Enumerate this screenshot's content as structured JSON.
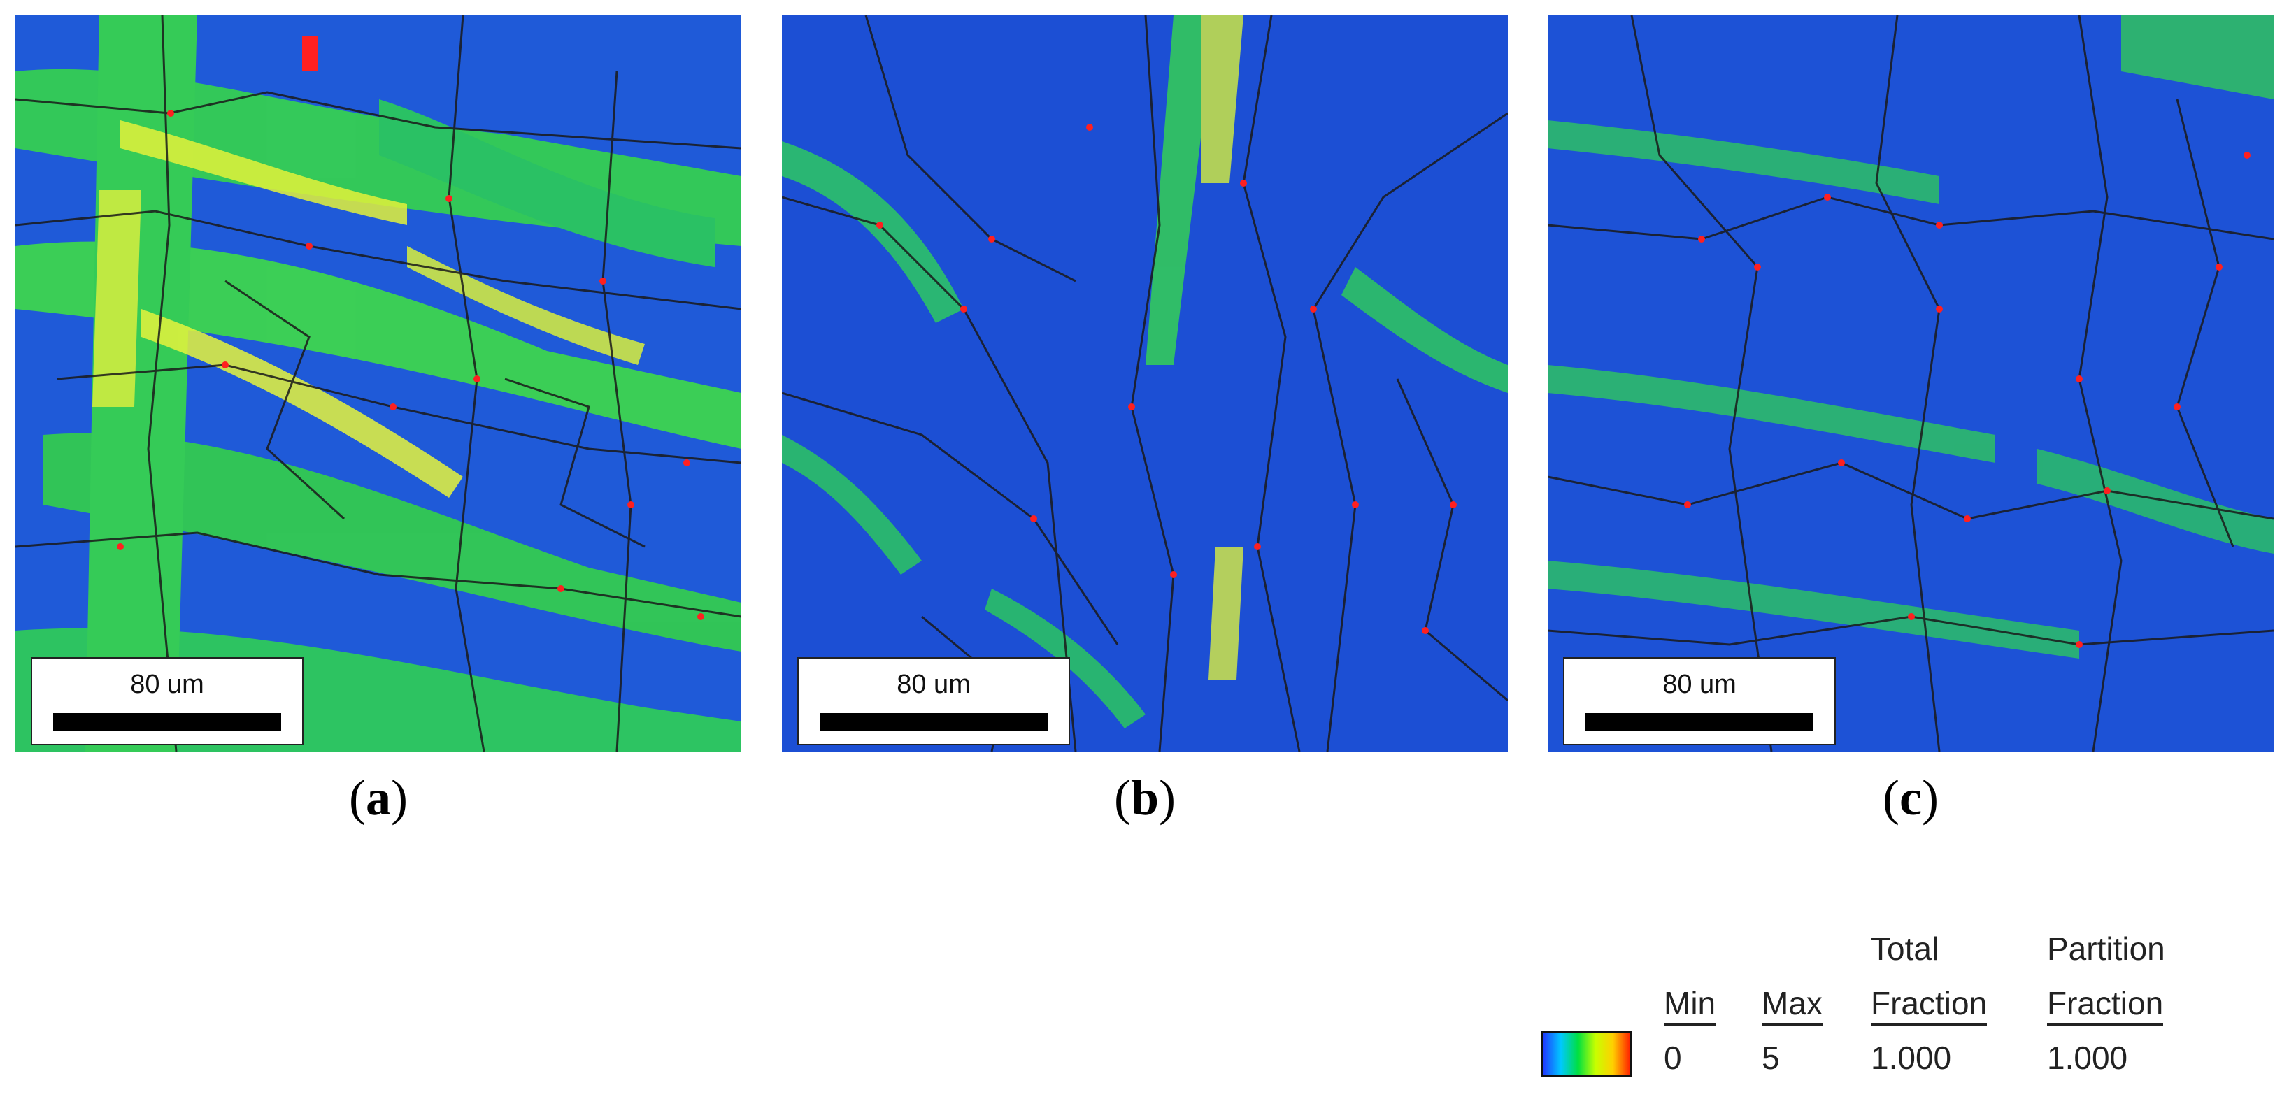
{
  "panels": [
    {
      "id": "a",
      "scale_label": "80 um",
      "caption_letter": "a"
    },
    {
      "id": "b",
      "scale_label": "80 um",
      "caption_letter": "b"
    },
    {
      "id": "c",
      "scale_label": "80 um",
      "caption_letter": "c"
    }
  ],
  "legend": {
    "min_header": "Min",
    "max_header": "Max",
    "total_header_line1": "Total",
    "total_header_line2": "Fraction",
    "partition_header_line1": "Partition",
    "partition_header_line2": "Fraction",
    "min_value": "0",
    "max_value": "5",
    "total_value": "1.000",
    "partition_value": "1.000",
    "gradient_colors": [
      "#1f3cff",
      "#00c8ff",
      "#00e040",
      "#c8ff00",
      "#ffd000",
      "#ff2000"
    ]
  },
  "colors": {
    "map_base": "#1d57d6",
    "map_green": "#34d94a",
    "map_yellow": "#e6f23a",
    "boundary": "#1a1a1a",
    "highlight": "#ff2020"
  }
}
